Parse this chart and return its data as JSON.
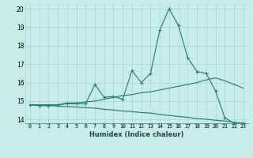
{
  "xlabel": "Humidex (Indice chaleur)",
  "x": [
    0,
    1,
    2,
    3,
    4,
    5,
    6,
    7,
    8,
    9,
    10,
    11,
    12,
    13,
    14,
    15,
    16,
    17,
    18,
    19,
    20,
    21,
    22,
    23
  ],
  "line1": [
    14.8,
    14.75,
    14.75,
    14.8,
    14.85,
    14.85,
    14.85,
    15.9,
    15.2,
    15.25,
    15.1,
    16.65,
    16.0,
    16.5,
    18.85,
    20.0,
    19.1,
    17.35,
    16.6,
    16.5,
    15.55,
    14.1,
    13.8,
    13.8
  ],
  "line2": [
    14.8,
    14.8,
    14.8,
    14.8,
    14.9,
    14.9,
    14.95,
    15.0,
    15.1,
    15.2,
    15.3,
    15.35,
    15.45,
    15.5,
    15.6,
    15.7,
    15.8,
    15.9,
    16.0,
    16.15,
    16.25,
    16.1,
    15.9,
    15.7
  ],
  "line3": [
    14.8,
    14.78,
    14.76,
    14.72,
    14.7,
    14.68,
    14.64,
    14.62,
    14.55,
    14.52,
    14.46,
    14.43,
    14.38,
    14.35,
    14.28,
    14.22,
    14.17,
    14.12,
    14.05,
    14.02,
    13.96,
    13.92,
    13.85,
    13.8
  ],
  "line_color": "#2a7d72",
  "bg_color": "#c8ece8",
  "grid_color": "#a8d4d0",
  "ylim": [
    13.8,
    20.3
  ],
  "yticks": [
    14,
    15,
    16,
    17,
    18,
    19,
    20
  ],
  "xlim": [
    -0.5,
    23.5
  ]
}
